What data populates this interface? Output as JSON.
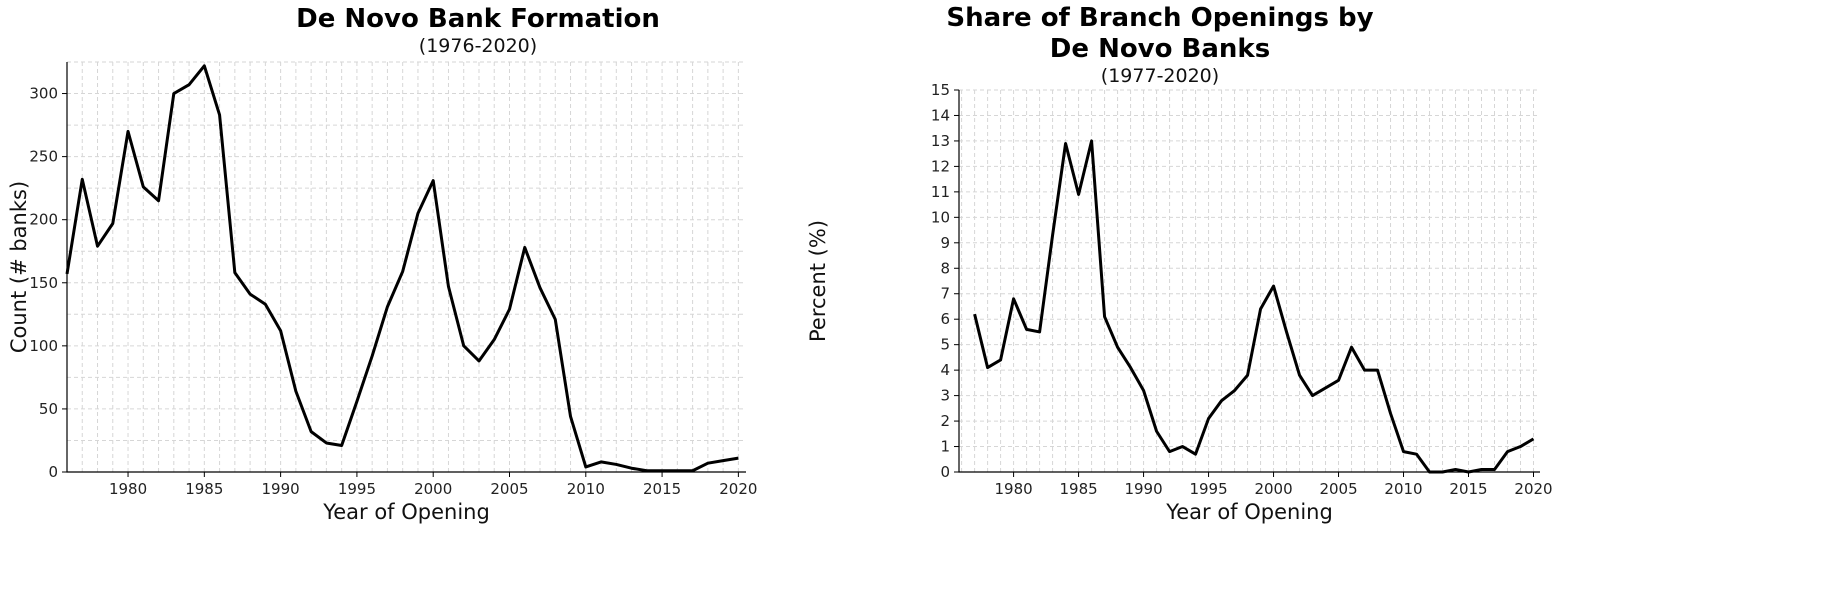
{
  "chart_data": [
    {
      "type": "line",
      "title": "De Novo Bank Formation",
      "subtitle": "(1976-2020)",
      "xlabel": "Year of Opening",
      "ylabel": "Count (# banks)",
      "xlim": [
        1976,
        2020.5
      ],
      "ylim": [
        0,
        325
      ],
      "xticks": [
        1980,
        1985,
        1990,
        1995,
        2000,
        2005,
        2010,
        2015,
        2020
      ],
      "yticks": [
        0,
        50,
        100,
        150,
        200,
        250,
        300
      ],
      "grid": true,
      "series": [
        {
          "name": "De Novo Banks",
          "x": [
            1976,
            1977,
            1978,
            1979,
            1980,
            1981,
            1982,
            1983,
            1984,
            1985,
            1986,
            1987,
            1988,
            1989,
            1990,
            1991,
            1992,
            1993,
            1994,
            1995,
            1996,
            1997,
            1998,
            1999,
            2000,
            2001,
            2002,
            2003,
            2004,
            2005,
            2006,
            2007,
            2008,
            2009,
            2010,
            2011,
            2012,
            2013,
            2014,
            2015,
            2016,
            2017,
            2018,
            2019,
            2020
          ],
          "values": [
            157,
            232,
            179,
            197,
            270,
            226,
            215,
            300,
            307,
            322,
            283,
            158,
            141,
            133,
            112,
            64,
            32,
            23,
            21,
            56,
            92,
            131,
            159,
            205,
            231,
            147,
            100,
            88,
            105,
            129,
            178,
            146,
            121,
            44,
            4,
            8,
            6,
            3,
            1,
            1,
            1,
            1,
            7,
            9,
            11
          ]
        }
      ]
    },
    {
      "type": "line",
      "title": "Share of Branch Openings by",
      "title_line2": "De Novo Banks",
      "subtitle": "(1977-2020)",
      "xlabel": "Year of Opening",
      "ylabel": "Percent (%)",
      "xlim": [
        1975.8,
        2020.5
      ],
      "ylim": [
        0,
        15
      ],
      "xticks": [
        1980,
        1985,
        1990,
        1995,
        2000,
        2005,
        2010,
        2015,
        2020
      ],
      "yticks": [
        0,
        1,
        2,
        3,
        4,
        5,
        6,
        7,
        8,
        9,
        10,
        11,
        12,
        13,
        14,
        15
      ],
      "grid": true,
      "series": [
        {
          "name": "Share of Branch Openings",
          "x": [
            1977,
            1978,
            1979,
            1980,
            1981,
            1982,
            1983,
            1984,
            1985,
            1986,
            1987,
            1988,
            1989,
            1990,
            1991,
            1992,
            1993,
            1994,
            1995,
            1996,
            1997,
            1998,
            1999,
            2000,
            2001,
            2002,
            2003,
            2004,
            2005,
            2006,
            2007,
            2008,
            2009,
            2010,
            2011,
            2012,
            2013,
            2014,
            2015,
            2016,
            2017,
            2018,
            2019,
            2020
          ],
          "values": [
            6.2,
            4.1,
            4.4,
            6.8,
            5.6,
            5.5,
            9.3,
            12.9,
            10.9,
            13.0,
            6.1,
            4.9,
            4.1,
            3.2,
            1.6,
            0.8,
            1.0,
            0.7,
            2.1,
            2.8,
            3.2,
            3.8,
            6.4,
            7.3,
            5.5,
            3.8,
            3.0,
            3.3,
            3.6,
            4.9,
            4.0,
            4.0,
            2.3,
            0.8,
            0.7,
            0.0,
            0.0,
            0.1,
            0.0,
            0.1,
            0.1,
            0.8,
            1.0,
            1.3
          ]
        }
      ]
    }
  ]
}
